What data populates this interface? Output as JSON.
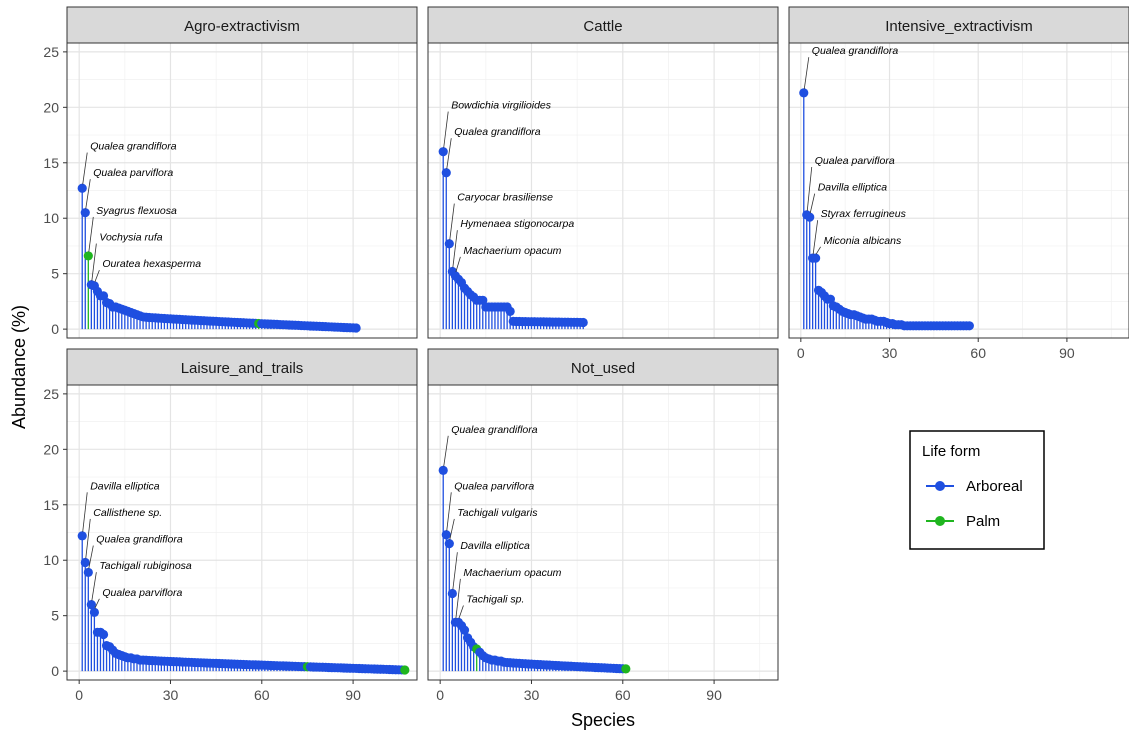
{
  "chart_data": {
    "type": "lollipop",
    "xlabel": "Species",
    "ylabel": "Abundance (%)",
    "xlim": [
      -4,
      111
    ],
    "ylim": [
      -0.8,
      25.8
    ],
    "x_ticks": [
      0,
      30,
      60,
      90
    ],
    "y_ticks": [
      0,
      5,
      10,
      15,
      20,
      25
    ],
    "grid": true,
    "legend": {
      "title": "Life form",
      "placement": "right",
      "entries": [
        {
          "name": "Arboreal",
          "color": "#1f4fe0"
        },
        {
          "name": "Palm",
          "color": "#1fb51f"
        }
      ]
    },
    "panels": [
      {
        "title": "Agro-extractivism",
        "n_species": 91,
        "top_values": [
          12.7,
          10.5,
          6.6,
          4.0,
          3.9,
          3.4,
          3.0,
          3.0,
          2.4,
          2.3,
          2.0,
          2.0,
          1.9,
          1.8,
          1.7,
          1.6,
          1.5,
          1.4,
          1.3,
          1.2
        ],
        "tail_start": 1.1,
        "tail_end": 0.1,
        "palm_ranks": [
          3,
          59
        ],
        "labels": [
          {
            "rank": 1,
            "text": "Qualea grandiflora",
            "label_y": 16.1
          },
          {
            "rank": 2,
            "text": "Qualea parviflora",
            "label_y": 13.7
          },
          {
            "rank": 3,
            "text": "Syagrus flexuosa",
            "label_y": 10.3
          },
          {
            "rank": 4,
            "text": "Vochysia rufa",
            "label_y": 7.9
          },
          {
            "rank": 5,
            "text": "Ouratea hexasperma",
            "label_y": 5.5
          }
        ]
      },
      {
        "title": "Cattle",
        "n_species": 47,
        "top_values": [
          16.0,
          14.1,
          7.7,
          5.2,
          4.8,
          4.5,
          4.2,
          3.7,
          3.4,
          3.1,
          2.9,
          2.6,
          2.6,
          2.6,
          2.0,
          2.0,
          2.0,
          2.0,
          2.0,
          2.0,
          2.0,
          2.0,
          1.6
        ],
        "tail_start": 0.7,
        "tail_end": 0.6,
        "palm_ranks": [],
        "labels": [
          {
            "rank": 1,
            "text": "Bowdichia virgilioides",
            "label_y": 19.8
          },
          {
            "rank": 2,
            "text": "Qualea grandiflora",
            "label_y": 17.4
          },
          {
            "rank": 3,
            "text": "Caryocar brasiliense",
            "label_y": 11.5
          },
          {
            "rank": 4,
            "text": "Hymenaea stigonocarpa",
            "label_y": 9.1
          },
          {
            "rank": 5,
            "text": "Machaerium opacum",
            "label_y": 6.7
          }
        ]
      },
      {
        "title": "Intensive_extractivism",
        "n_species": 57,
        "top_values": [
          21.3,
          10.3,
          10.1,
          6.4,
          6.4,
          3.5,
          3.3,
          3.0,
          2.7,
          2.7,
          2.1,
          2.0,
          1.8,
          1.6,
          1.5,
          1.4,
          1.3,
          1.3,
          1.2,
          1.1,
          1.0,
          0.9,
          0.9,
          0.9,
          0.8,
          0.7,
          0.7,
          0.7,
          0.6,
          0.5,
          0.5,
          0.4,
          0.4,
          0.4,
          0.3
        ],
        "tail_start": 0.3,
        "tail_end": 0.3,
        "palm_ranks": [],
        "labels": [
          {
            "rank": 1,
            "text": "Qualea grandiflora",
            "label_y": 24.7
          },
          {
            "rank": 2,
            "text": "Qualea parviflora",
            "label_y": 14.8
          },
          {
            "rank": 3,
            "text": "Davilla elliptica",
            "label_y": 12.4
          },
          {
            "rank": 4,
            "text": "Styrax ferrugineus",
            "label_y": 10.0
          },
          {
            "rank": 5,
            "text": "Miconia albicans",
            "label_y": 7.6
          }
        ]
      },
      {
        "title": "Laisure_and_trails",
        "n_species": 107,
        "top_values": [
          12.2,
          9.8,
          8.9,
          6.0,
          5.3,
          3.5,
          3.5,
          3.3,
          2.3,
          2.2,
          1.9,
          1.6,
          1.5,
          1.4,
          1.3,
          1.2,
          1.2,
          1.1,
          1.1,
          1.0
        ],
        "tail_start": 1.0,
        "tail_end": 0.1,
        "palm_ranks": [
          75,
          107
        ],
        "labels": [
          {
            "rank": 1,
            "text": "Davilla elliptica",
            "label_y": 16.3
          },
          {
            "rank": 2,
            "text": "Callisthene sp.",
            "label_y": 13.9
          },
          {
            "rank": 3,
            "text": "Qualea grandiflora",
            "label_y": 11.5
          },
          {
            "rank": 4,
            "text": "Tachigali rubiginosa",
            "label_y": 9.1
          },
          {
            "rank": 5,
            "text": "Qualea parviflora",
            "label_y": 6.7
          }
        ]
      },
      {
        "title": "Not_used",
        "n_species": 61,
        "top_values": [
          18.1,
          12.3,
          11.5,
          7.0,
          4.4,
          4.4,
          4.1,
          3.7,
          3.0,
          2.6,
          2.2,
          2.0,
          1.7,
          1.4,
          1.2,
          1.1,
          1.0,
          1.0,
          0.9,
          0.9
        ],
        "tail_start": 0.8,
        "tail_end": 0.2,
        "palm_ranks": [
          12,
          61
        ],
        "labels": [
          {
            "rank": 1,
            "text": "Qualea grandiflora",
            "label_y": 21.4
          },
          {
            "rank": 2,
            "text": "Qualea parviflora",
            "label_y": 16.3
          },
          {
            "rank": 3,
            "text": "Tachigali vulgaris",
            "label_y": 13.9
          },
          {
            "rank": 4,
            "text": "Davilla elliptica",
            "label_y": 10.9
          },
          {
            "rank": 5,
            "text": "Machaerium opacum",
            "label_y": 8.5
          },
          {
            "rank": 6,
            "text": "Tachigali sp.",
            "label_y": 6.1
          }
        ]
      }
    ]
  }
}
